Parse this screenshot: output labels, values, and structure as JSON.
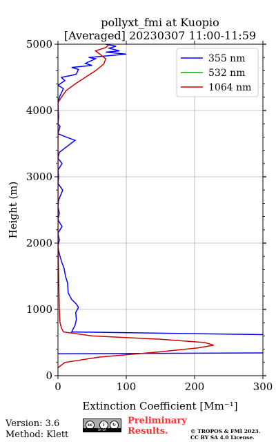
{
  "chart_data": {
    "type": "line",
    "title": [
      "pollyxt_fmi at Kuopio",
      "[Averaged] 20230307 11:00-11:59"
    ],
    "xlabel": "Extinction Coefficient [Mm⁻¹]",
    "ylabel": "Height (m)",
    "xlim": [
      0,
      300
    ],
    "ylim": [
      0,
      5000
    ],
    "xticks": [
      0,
      100,
      200,
      300
    ],
    "yticks": [
      0,
      1000,
      2000,
      3000,
      4000,
      5000
    ],
    "grid": true,
    "legend_position": "top-right",
    "series": [
      {
        "name": "355 nm",
        "color": "#0000ff",
        "points": [
          [
            0,
            330
          ],
          [
            310,
            345
          ],
          [
            310,
            360
          ],
          [
            300,
            620
          ],
          [
            20,
            660
          ],
          [
            22,
            700
          ],
          [
            25,
            760
          ],
          [
            27,
            850
          ],
          [
            26,
            950
          ],
          [
            30,
            1030
          ],
          [
            27,
            1080
          ],
          [
            20,
            1150
          ],
          [
            15,
            1250
          ],
          [
            14,
            1400
          ],
          [
            11,
            1500
          ],
          [
            9,
            1620
          ],
          [
            6,
            1700
          ],
          [
            3,
            1800
          ],
          [
            1,
            1880
          ],
          [
            0,
            1950
          ],
          [
            2,
            2050
          ],
          [
            0,
            2150
          ],
          [
            6,
            2250
          ],
          [
            0,
            2350
          ],
          [
            2,
            2450
          ],
          [
            0,
            2550
          ],
          [
            1,
            2650
          ],
          [
            7,
            2800
          ],
          [
            0,
            2900
          ],
          [
            1,
            3000
          ],
          [
            0,
            3100
          ],
          [
            6,
            3200
          ],
          [
            0,
            3280
          ],
          [
            2,
            3370
          ],
          [
            25,
            3550
          ],
          [
            12,
            3600
          ],
          [
            0,
            3650
          ],
          [
            3,
            3760
          ],
          [
            0,
            3800
          ],
          [
            1,
            3900
          ],
          [
            0,
            4100
          ],
          [
            2,
            4200
          ],
          [
            8,
            4330
          ],
          [
            0,
            4380
          ],
          [
            10,
            4450
          ],
          [
            5,
            4500
          ],
          [
            20,
            4530
          ],
          [
            27,
            4550
          ],
          [
            30,
            4620
          ],
          [
            20,
            4650
          ],
          [
            50,
            4680
          ],
          [
            40,
            4710
          ],
          [
            55,
            4780
          ],
          [
            45,
            4800
          ],
          [
            100,
            4850
          ],
          [
            70,
            4880
          ],
          [
            90,
            4900
          ],
          [
            75,
            4940
          ],
          [
            85,
            4970
          ],
          [
            70,
            5000
          ]
        ]
      },
      {
        "name": "532 nm",
        "color": "#00b000",
        "points": []
      },
      {
        "name": "1064 nm",
        "color": "#cc0000",
        "points": [
          [
            0,
            120
          ],
          [
            10,
            200
          ],
          [
            60,
            280
          ],
          [
            150,
            360
          ],
          [
            205,
            420
          ],
          [
            228,
            460
          ],
          [
            215,
            500
          ],
          [
            150,
            550
          ],
          [
            50,
            600
          ],
          [
            8,
            660
          ],
          [
            5,
            720
          ],
          [
            3,
            800
          ],
          [
            2,
            1000
          ],
          [
            1,
            1500
          ],
          [
            0,
            2000
          ],
          [
            0,
            3000
          ],
          [
            0,
            4000
          ],
          [
            0,
            4120
          ],
          [
            5,
            4200
          ],
          [
            12,
            4300
          ],
          [
            25,
            4400
          ],
          [
            40,
            4500
          ],
          [
            55,
            4600
          ],
          [
            67,
            4700
          ],
          [
            70,
            4780
          ],
          [
            60,
            4860
          ],
          [
            55,
            4900
          ],
          [
            70,
            4950
          ],
          [
            75,
            5000
          ]
        ]
      }
    ]
  },
  "footer": {
    "version": "Version: 3.6",
    "method": "Method: Klett",
    "preliminary": [
      "Preliminary",
      "Results."
    ],
    "copyright": [
      "© TROPOS & FMI 2023.",
      "CC BY SA 4.0 License."
    ],
    "license_badge": {
      "cc": "cc",
      "by": "i",
      "sa": "↻",
      "strip": "BY SA"
    }
  }
}
